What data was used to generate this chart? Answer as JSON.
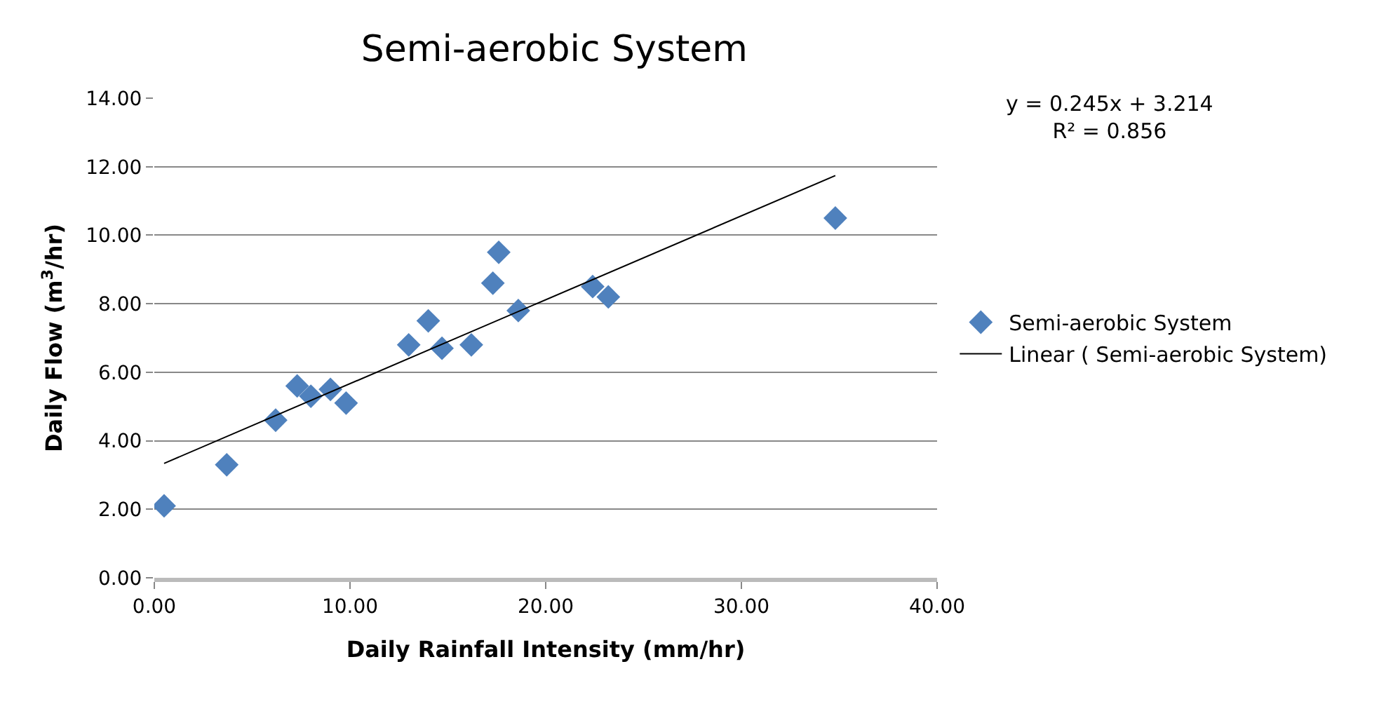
{
  "chart_data": {
    "type": "scatter",
    "title": "Semi-aerobic System",
    "xlabel": "Daily Rainfall Intensity (mm/hr)",
    "ylabel": "Daily Flow (m$^{3}$/hr)",
    "annotations": [
      "y = 0.245x + 3.214\nR² = 0.856"
    ],
    "marker": "diamond",
    "grid": "y",
    "legend": "right",
    "xlim": [
      0,
      40
    ],
    "xticks": [
      {
        "value": 0,
        "label": "0.00"
      },
      {
        "value": 10,
        "label": "10.00"
      },
      {
        "value": 20,
        "label": "20.00"
      },
      {
        "value": 30,
        "label": "30.00"
      },
      {
        "value": 40,
        "label": "40.00"
      }
    ],
    "ylim": [
      0,
      14
    ],
    "yticks": [
      {
        "value": 0,
        "label": "0.00"
      },
      {
        "value": 2,
        "label": "2.00"
      },
      {
        "value": 4,
        "label": "4.00"
      },
      {
        "value": 6,
        "label": "6.00"
      },
      {
        "value": 8,
        "label": "8.00"
      },
      {
        "value": 10,
        "label": "10.00"
      },
      {
        "value": 12,
        "label": "12.00"
      },
      {
        "value": 14,
        "label": "14.00"
      }
    ],
    "series": [
      {
        "name": "Semi-aerobic System",
        "color": "#4f81bd",
        "x": [
          0.5,
          3.7,
          6.2,
          7.3,
          8.0,
          9.0,
          9.8,
          13.0,
          14.0,
          14.7,
          16.2,
          17.3,
          17.6,
          18.6,
          22.4,
          23.2,
          34.8
        ],
        "values": [
          2.1,
          3.3,
          4.6,
          5.6,
          5.3,
          5.5,
          5.1,
          6.8,
          7.5,
          6.7,
          6.8,
          8.6,
          9.5,
          7.8,
          8.5,
          8.2,
          10.5
        ]
      },
      {
        "name": "Linear ( Semi-aerobic System)",
        "type": "line",
        "color": "#000000",
        "marker": "none",
        "x": [
          0.5,
          34.8
        ],
        "values": [
          3.34,
          11.74
        ]
      }
    ]
  }
}
